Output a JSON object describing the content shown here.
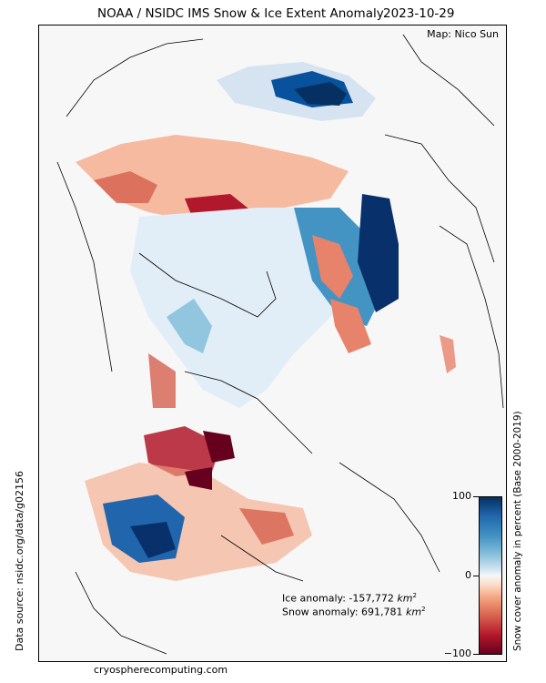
{
  "title": {
    "main": "NOAA / NSIDC IMS Snow & Ice Extent Anomaly",
    "date": "2023-10-29"
  },
  "map": {
    "credit": "Map: Nico Sun",
    "anomaly": {
      "ice_prefix": "Ice anomaly: -157,772 ",
      "snow_prefix": "Snow anomaly: 691,781 ",
      "unit": "km",
      "unit_exp": "2"
    }
  },
  "source": {
    "data_source": "Data source: nsidc.org/data/g02156",
    "website": "cryospherecomputing.com"
  },
  "colorbar": {
    "label": "Snow cover anomaly in percent (Base 2000-2019)",
    "ticks": [
      "100",
      "0",
      "−100"
    ],
    "colormap": "RdBu (blue = positive, red = negative)"
  },
  "colors": {
    "background": "#f7f7f7",
    "strong_positive": "#08306b",
    "positive": "#4393c3",
    "negative": "#d6604d",
    "strong_negative": "#67001f",
    "coastline": "#000000"
  }
}
